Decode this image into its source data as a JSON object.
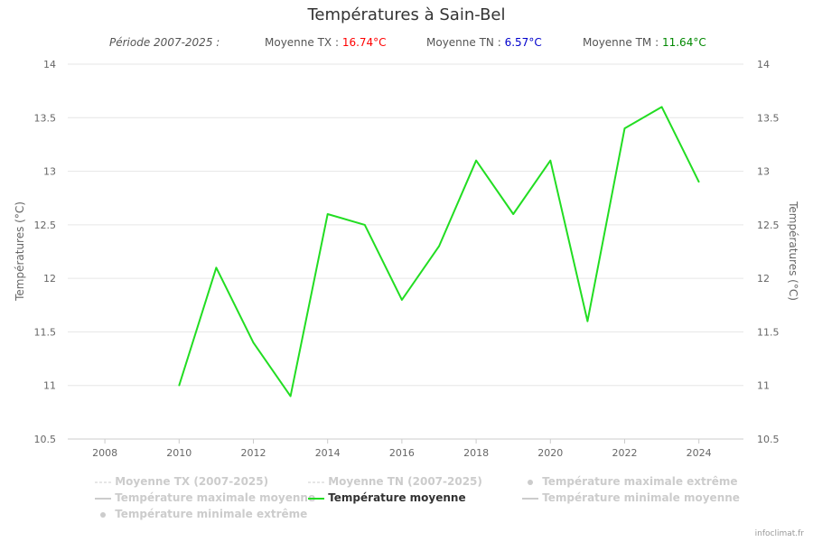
{
  "header": {
    "title": "Températures à Sain-Bel",
    "period": "Période 2007-2025 :",
    "tx_label": "Moyenne TX :",
    "tx_value": "16.74°C",
    "tn_label": "Moyenne TN :",
    "tn_value": "6.57°C",
    "tm_label": "Moyenne TM :",
    "tm_value": "11.64°C"
  },
  "colors": {
    "tx": "#ff0000",
    "tn": "#0000cc",
    "tm": "#008800",
    "series_line": "#22dd22",
    "legend_inactive": "#cccccc",
    "legend_active": "#333333"
  },
  "legend": [
    {
      "label": "Moyenne TX (2007-2025)",
      "symbol": "dash",
      "active": false
    },
    {
      "label": "Moyenne TN (2007-2025)",
      "symbol": "dash",
      "active": false
    },
    {
      "label": "Température maximale extrême",
      "symbol": "dot",
      "active": false
    },
    {
      "label": "Température maximale moyenne",
      "symbol": "line",
      "active": false
    },
    {
      "label": "Température moyenne",
      "symbol": "line",
      "active": true
    },
    {
      "label": "Température minimale moyenne",
      "symbol": "line",
      "active": false
    },
    {
      "label": "Température minimale extrême",
      "symbol": "dot",
      "active": false
    }
  ],
  "credit": "infoclimat.fr",
  "chart_data": {
    "type": "line",
    "title": "Températures à Sain-Bel",
    "ylabel": "Températures (°C)",
    "y2label": "Températures (°C)",
    "xlim": [
      2007,
      2025.2
    ],
    "ylim": [
      10.5,
      14
    ],
    "xticks": [
      "2008",
      "2010",
      "2012",
      "2014",
      "2016",
      "2018",
      "2020",
      "2022",
      "2024"
    ],
    "yticks": [
      "10.5",
      "11",
      "11.5",
      "12",
      "12.5",
      "13",
      "13.5",
      "14"
    ],
    "grid": true,
    "legend_position": "bottom",
    "series": [
      {
        "name": "Température moyenne",
        "x": [
          2010,
          2011,
          2012,
          2013,
          2014,
          2015,
          2016,
          2017,
          2018,
          2019,
          2020,
          2021,
          2022,
          2023,
          2024
        ],
        "values": [
          11.0,
          12.1,
          11.4,
          10.9,
          12.6,
          12.5,
          11.8,
          12.3,
          13.1,
          12.6,
          13.1,
          11.6,
          13.4,
          13.6,
          12.9
        ]
      }
    ]
  }
}
